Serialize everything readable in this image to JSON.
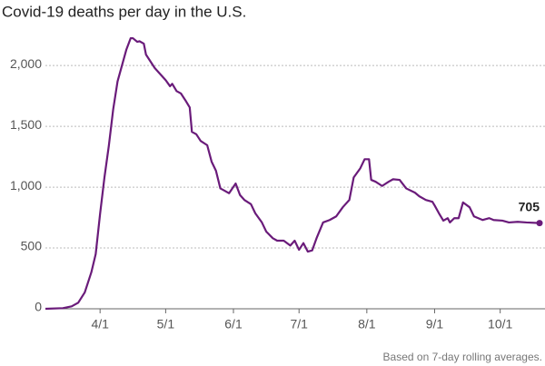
{
  "chart_data": {
    "type": "line",
    "title": "Covid-19 deaths per day in the U.S.",
    "note": "Based on 7-day rolling averages.",
    "x": [
      "3/7",
      "3/15",
      "3/19",
      "3/22",
      "3/25",
      "3/28",
      "3/30",
      "4/1",
      "4/3",
      "4/5",
      "4/7",
      "4/9",
      "4/11",
      "4/13",
      "4/15",
      "4/16",
      "4/18",
      "4/19",
      "4/21",
      "4/22",
      "4/26",
      "4/28",
      "5/1",
      "5/3",
      "5/4",
      "5/6",
      "5/8",
      "5/10",
      "5/12",
      "5/13",
      "5/15",
      "5/17",
      "5/20",
      "5/22",
      "5/24",
      "5/26",
      "5/28",
      "5/30",
      "6/2",
      "6/4",
      "6/6",
      "6/9",
      "6/11",
      "6/14",
      "6/16",
      "6/19",
      "6/21",
      "6/24",
      "6/27",
      "6/29",
      "7/1",
      "7/3",
      "7/5",
      "7/7",
      "7/9",
      "7/12",
      "7/15",
      "7/18",
      "7/21",
      "7/24",
      "7/26",
      "7/29",
      "7/31",
      "8/2",
      "8/3",
      "8/5",
      "8/8",
      "8/11",
      "8/13",
      "8/16",
      "8/19",
      "8/23",
      "8/25",
      "8/28",
      "8/31",
      "9/1",
      "9/3",
      "9/5",
      "9/7",
      "9/8",
      "9/10",
      "9/12",
      "9/14",
      "9/17",
      "9/19",
      "9/21",
      "9/23",
      "9/26",
      "9/28",
      "10/2",
      "10/5",
      "10/9",
      "10/13",
      "10/19"
    ],
    "series": [
      {
        "name": "Deaths per day",
        "color": "#6a1b7a",
        "values": [
          0,
          5,
          20,
          50,
          135,
          300,
          450,
          780,
          1080,
          1340,
          1640,
          1870,
          2000,
          2130,
          2225,
          2225,
          2195,
          2200,
          2180,
          2090,
          1980,
          1940,
          1880,
          1830,
          1850,
          1790,
          1770,
          1715,
          1655,
          1455,
          1435,
          1380,
          1345,
          1210,
          1135,
          990,
          970,
          950,
          1030,
          935,
          895,
          860,
          785,
          710,
          635,
          580,
          560,
          560,
          520,
          560,
          485,
          540,
          470,
          480,
          580,
          710,
          730,
          760,
          835,
          895,
          1080,
          1155,
          1230,
          1230,
          1060,
          1045,
          1010,
          1045,
          1065,
          1060,
          990,
          955,
          925,
          895,
          880,
          850,
          785,
          725,
          745,
          710,
          745,
          745,
          875,
          835,
          760,
          745,
          730,
          745,
          730,
          725,
          710,
          715,
          710,
          705
        ]
      }
    ],
    "xlim": [
      "3/7",
      "10/19"
    ],
    "xticks": [
      "4/1",
      "5/1",
      "6/1",
      "7/1",
      "8/1",
      "9/1",
      "10/1"
    ],
    "ylim": [
      0,
      2300
    ],
    "yticks": [
      0,
      500,
      {
        "value": 1000,
        "label": "1,000"
      },
      {
        "value": 1500,
        "label": "1,500"
      },
      {
        "value": 2000,
        "label": "2,000"
      }
    ],
    "grid": true
  }
}
